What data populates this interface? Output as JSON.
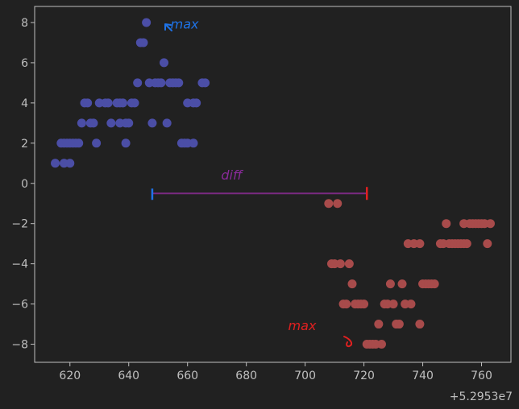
{
  "chart_data": {
    "type": "scatter",
    "title": "",
    "xlabel": "",
    "ylabel": "",
    "x_offset_label": "+5.2953e7",
    "xlim": [
      608,
      770
    ],
    "ylim": [
      -8.9,
      8.8
    ],
    "x_ticks": [
      620,
      640,
      660,
      680,
      700,
      720,
      740,
      760
    ],
    "y_ticks": [
      -8,
      -6,
      -4,
      -2,
      0,
      2,
      4,
      6,
      8
    ],
    "grid": false,
    "series": [
      {
        "color": "#4b4ea6",
        "points": [
          [
            615,
            1
          ],
          [
            618,
            1
          ],
          [
            620,
            1
          ],
          [
            617,
            2
          ],
          [
            618,
            2
          ],
          [
            619,
            2
          ],
          [
            620,
            2
          ],
          [
            621,
            2
          ],
          [
            622,
            2
          ],
          [
            623,
            2
          ],
          [
            629,
            2
          ],
          [
            639,
            2
          ],
          [
            658,
            2
          ],
          [
            659,
            2
          ],
          [
            660,
            2
          ],
          [
            662,
            2
          ],
          [
            624,
            3
          ],
          [
            627,
            3
          ],
          [
            628,
            3
          ],
          [
            634,
            3
          ],
          [
            637,
            3
          ],
          [
            639,
            3
          ],
          [
            640,
            3
          ],
          [
            648,
            3
          ],
          [
            653,
            3
          ],
          [
            625,
            4
          ],
          [
            626,
            4
          ],
          [
            630,
            4
          ],
          [
            632,
            4
          ],
          [
            633,
            4
          ],
          [
            636,
            4
          ],
          [
            637,
            4
          ],
          [
            638,
            4
          ],
          [
            641,
            4
          ],
          [
            642,
            4
          ],
          [
            660,
            4
          ],
          [
            662,
            4
          ],
          [
            663,
            4
          ],
          [
            643,
            5
          ],
          [
            647,
            5
          ],
          [
            649,
            5
          ],
          [
            650,
            5
          ],
          [
            651,
            5
          ],
          [
            654,
            5
          ],
          [
            655,
            5
          ],
          [
            656,
            5
          ],
          [
            657,
            5
          ],
          [
            665,
            5
          ],
          [
            666,
            5
          ],
          [
            652,
            6
          ],
          [
            644,
            7
          ],
          [
            645,
            7
          ],
          [
            646,
            8
          ]
        ]
      },
      {
        "color": "#a84b4b",
        "points": [
          [
            708,
            -1
          ],
          [
            711,
            -1
          ],
          [
            748,
            -2
          ],
          [
            754,
            -2
          ],
          [
            756,
            -2
          ],
          [
            757,
            -2
          ],
          [
            758,
            -2
          ],
          [
            759,
            -2
          ],
          [
            760,
            -2
          ],
          [
            761,
            -2
          ],
          [
            763,
            -2
          ],
          [
            735,
            -3
          ],
          [
            737,
            -3
          ],
          [
            739,
            -3
          ],
          [
            746,
            -3
          ],
          [
            747,
            -3
          ],
          [
            749,
            -3
          ],
          [
            750,
            -3
          ],
          [
            751,
            -3
          ],
          [
            752,
            -3
          ],
          [
            753,
            -3
          ],
          [
            754,
            -3
          ],
          [
            755,
            -3
          ],
          [
            762,
            -3
          ],
          [
            709,
            -4
          ],
          [
            710,
            -4
          ],
          [
            712,
            -4
          ],
          [
            715,
            -4
          ],
          [
            716,
            -5
          ],
          [
            729,
            -5
          ],
          [
            733,
            -5
          ],
          [
            740,
            -5
          ],
          [
            741,
            -5
          ],
          [
            742,
            -5
          ],
          [
            743,
            -5
          ],
          [
            744,
            -5
          ],
          [
            713,
            -6
          ],
          [
            714,
            -6
          ],
          [
            717,
            -6
          ],
          [
            718,
            -6
          ],
          [
            719,
            -6
          ],
          [
            720,
            -6
          ],
          [
            727,
            -6
          ],
          [
            728,
            -6
          ],
          [
            730,
            -6
          ],
          [
            734,
            -6
          ],
          [
            736,
            -6
          ],
          [
            725,
            -7
          ],
          [
            731,
            -7
          ],
          [
            732,
            -7
          ],
          [
            739,
            -7
          ],
          [
            721,
            -8
          ],
          [
            722,
            -8
          ],
          [
            723,
            -8
          ],
          [
            724,
            -8
          ],
          [
            726,
            -8
          ]
        ]
      }
    ],
    "annotations": [
      {
        "text": "max",
        "color": "#1e73e8",
        "x": 659,
        "y": 7.7
      },
      {
        "text": "max",
        "color": "#e02020",
        "x": 699,
        "y": -7.3
      },
      {
        "text": "diff",
        "color": "#8a2a9a",
        "x": 675,
        "y": 0.2
      }
    ],
    "diff_line": {
      "x1": 648,
      "x2": 721,
      "y": -0.5,
      "color": "#7a2a82"
    }
  }
}
